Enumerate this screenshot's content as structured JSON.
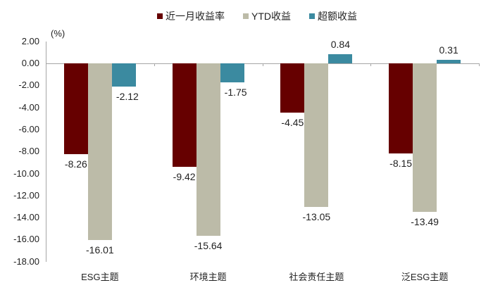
{
  "chart_data": {
    "type": "bar",
    "title": "",
    "unit_label": "(%)",
    "xlabel": "",
    "ylabel": "(%)",
    "ylim": [
      -18,
      2
    ],
    "yticks": [
      "2.00",
      "0.00",
      "-2.00",
      "-4.00",
      "-6.00",
      "-8.00",
      "-10.00",
      "-12.00",
      "-14.00",
      "-16.00",
      "-18.00"
    ],
    "grid": false,
    "legend_position": "top",
    "categories": [
      "ESG主题",
      "环境主题",
      "社会责任主题",
      "泛ESG主题"
    ],
    "series": [
      {
        "name": "近一月收益率",
        "color": "#660000",
        "values": [
          -8.26,
          -9.42,
          -4.45,
          -8.15
        ],
        "labels": [
          "-8.26",
          "-9.42",
          "-4.45",
          "-8.15"
        ]
      },
      {
        "name": "YTD收益",
        "color": "#bcbba8",
        "values": [
          -16.01,
          -15.64,
          -13.05,
          -13.49
        ],
        "labels": [
          "-16.01",
          "-15.64",
          "-13.05",
          "-13.49"
        ]
      },
      {
        "name": "超额收益",
        "color": "#3b8aa0",
        "values": [
          -2.12,
          -1.75,
          0.84,
          0.31
        ],
        "labels": [
          "-2.12",
          "-1.75",
          "0.84",
          "0.31"
        ]
      }
    ]
  }
}
